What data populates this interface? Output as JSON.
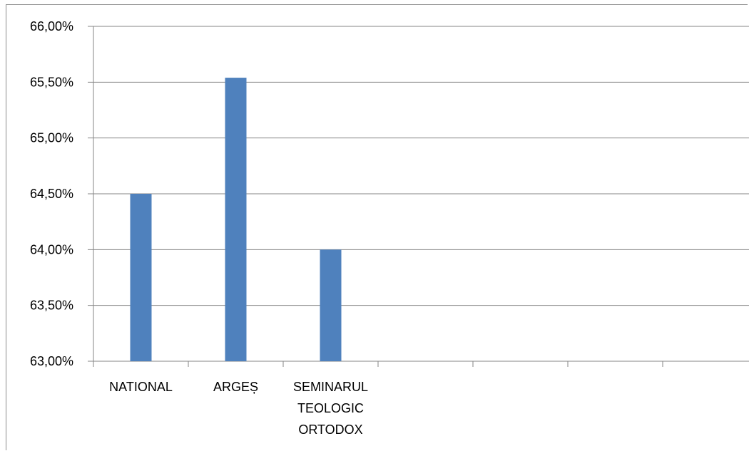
{
  "chart_data": {
    "type": "bar",
    "categories": [
      "NATIONAL",
      "ARGEȘ",
      "SEMINARUL TEOLOGIC ORTODOX",
      "",
      "",
      ""
    ],
    "category_lines": [
      [
        "NATIONAL"
      ],
      [
        "ARGEȘ"
      ],
      [
        "SEMINARUL",
        "TEOLOGIC",
        "ORTODOX"
      ],
      [],
      [],
      []
    ],
    "values": [
      64.5,
      65.54,
      64.0,
      null,
      null,
      null
    ],
    "ylim": [
      63.0,
      66.0
    ],
    "yticks": [
      63.0,
      63.5,
      64.0,
      64.5,
      65.0,
      65.5,
      66.0
    ],
    "ytick_labels": [
      "63,00%",
      "63,50%",
      "64,00%",
      "64,50%",
      "65,00%",
      "65,50%",
      "66,00%"
    ],
    "grid": true,
    "bar_color": "#4f81bd",
    "grid_color": "#868686",
    "title": "",
    "xlabel": "",
    "ylabel": ""
  }
}
